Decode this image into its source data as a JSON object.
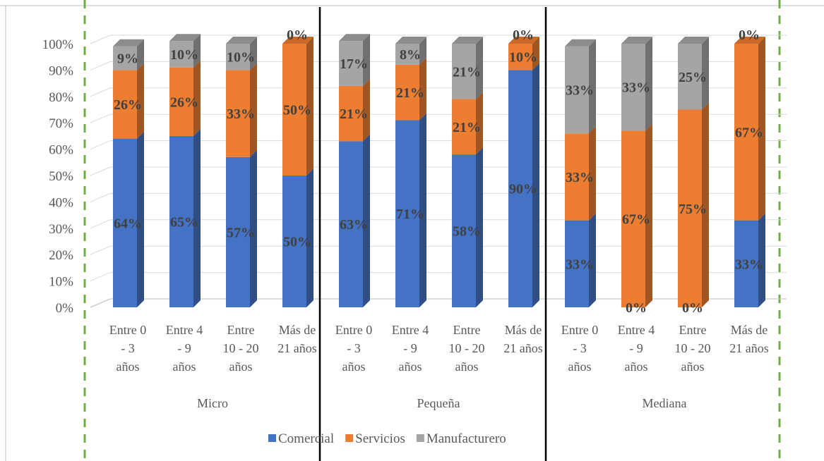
{
  "chart_data": {
    "type": "bar",
    "stacked": true,
    "percent": true,
    "ylim": [
      0,
      100
    ],
    "yticks": [
      "0%",
      "10%",
      "20%",
      "30%",
      "40%",
      "50%",
      "60%",
      "70%",
      "80%",
      "90%",
      "100%"
    ],
    "grid": true,
    "legend_position": "bottom",
    "groups": [
      "Micro",
      "Pequeña",
      "Mediana"
    ],
    "categories": [
      [
        "Entre 0",
        "- 3",
        "años"
      ],
      [
        "Entre 4",
        "- 9",
        "años"
      ],
      [
        "Entre",
        "10 - 20",
        "años"
      ],
      [
        "Más de",
        "21 años"
      ],
      [
        "Entre 0",
        "- 3",
        "años"
      ],
      [
        "Entre 4",
        "- 9",
        "años"
      ],
      [
        "Entre",
        "10 - 20",
        "años"
      ],
      [
        "Más de",
        "21 años"
      ],
      [
        "Entre 0",
        "- 3",
        "años"
      ],
      [
        "Entre 4",
        "- 9",
        "años"
      ],
      [
        "Entre",
        "10 - 20",
        "años"
      ],
      [
        "Más de",
        "21 años"
      ]
    ],
    "series": [
      {
        "name": "Comercial",
        "color": "#4472C4",
        "values": [
          64,
          65,
          57,
          50,
          63,
          71,
          58,
          90,
          33,
          0,
          0,
          33
        ],
        "labels": [
          "64%",
          "65%",
          "57%",
          "50%",
          "63%",
          "71%",
          "58%",
          "90%",
          "33%",
          "0%",
          "0%",
          "33%"
        ]
      },
      {
        "name": "Servicios",
        "color": "#ED7D31",
        "values": [
          26,
          26,
          33,
          50,
          21,
          21,
          21,
          10,
          33,
          67,
          75,
          67
        ],
        "labels": [
          "26%",
          "26%",
          "33%",
          "50%",
          "21%",
          "21%",
          "21%",
          "10%",
          "33%",
          "67%",
          "75%",
          "67%"
        ]
      },
      {
        "name": "Manufacturero",
        "color": "#A5A5A5",
        "values": [
          9,
          10,
          10,
          0,
          17,
          8,
          21,
          0,
          33,
          33,
          25,
          0
        ],
        "labels": [
          "9%",
          "10%",
          "10%",
          "0%",
          "17%",
          "8%",
          "21%",
          "0%",
          "33%",
          "33%",
          "25%",
          "0%"
        ]
      }
    ]
  }
}
